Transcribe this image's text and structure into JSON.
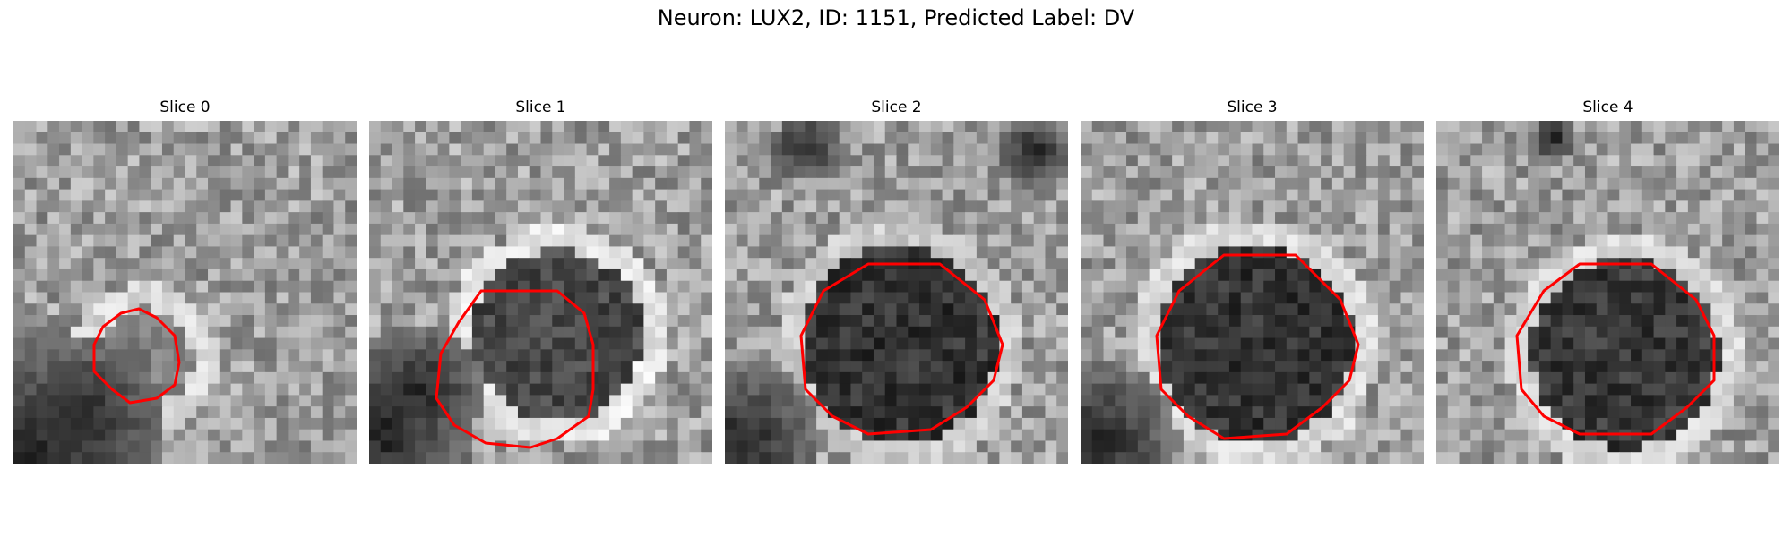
{
  "figure": {
    "title": "Neuron: LUX2, ID: 1151, Predicted Label: DV",
    "contour_color": "#ff0000"
  },
  "panels": [
    {
      "title": "Slice 0"
    },
    {
      "title": "Slice 1"
    },
    {
      "title": "Slice 2"
    },
    {
      "title": "Slice 3"
    },
    {
      "title": "Slice 4"
    }
  ]
}
